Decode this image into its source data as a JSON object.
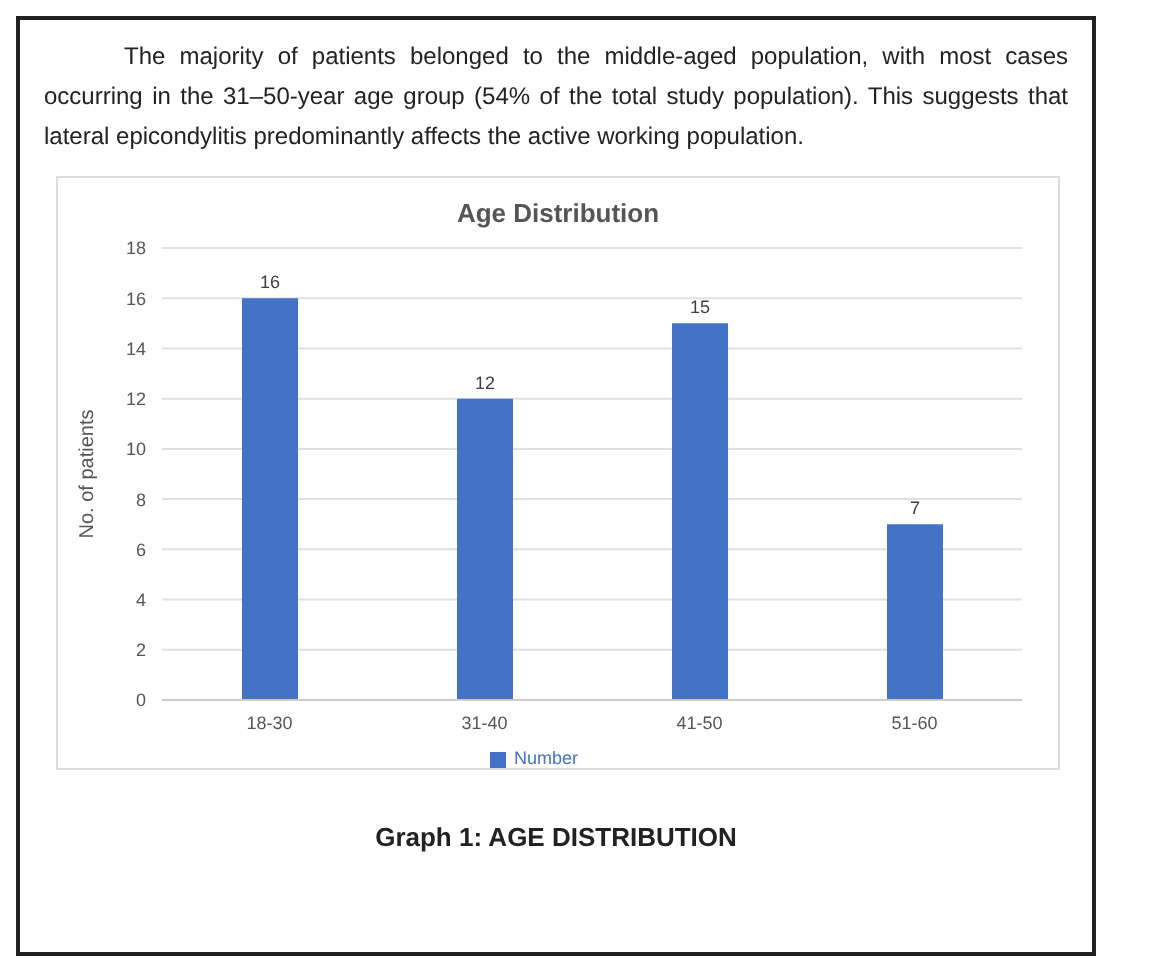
{
  "chart_data": {
    "type": "bar",
    "title": "Age Distribution",
    "ylabel": "No. of patients",
    "categories": [
      "18-30",
      "31-40",
      "41-50",
      "51-60"
    ],
    "series": [
      {
        "name": "Number",
        "color": "#4472c4",
        "values": [
          16,
          12,
          15,
          7
        ]
      }
    ],
    "ylim": [
      0,
      18
    ],
    "yticks": [
      0,
      2,
      4,
      6,
      8,
      10,
      12,
      14,
      16,
      18
    ],
    "grid": "y",
    "legend": "bottom",
    "data_labels": true,
    "annotations": [
      "The majority of patients belonged to the middle-aged population, with most cases occurring in the 31–50-year age group (54% of the total study population). This suggests that lateral epicondylitis predominantly affects the active working population.",
      "Graph 1: AGE DISTRIBUTION"
    ]
  }
}
